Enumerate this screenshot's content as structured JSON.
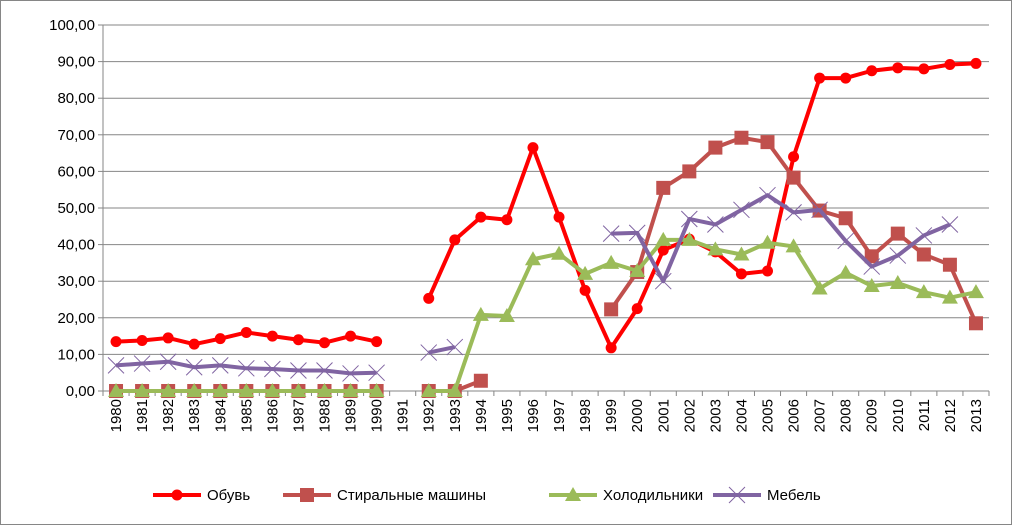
{
  "chart_data": {
    "type": "line",
    "title": "",
    "xlabel": "",
    "ylabel": "",
    "ylim": [
      0,
      100
    ],
    "yticks": [
      "0,00",
      "10,00",
      "20,00",
      "30,00",
      "40,00",
      "50,00",
      "60,00",
      "70,00",
      "80,00",
      "90,00",
      "100,00"
    ],
    "grid": true,
    "legend_position": "bottom",
    "categories": [
      "1980",
      "1981",
      "1982",
      "1983",
      "1984",
      "1985",
      "1986",
      "1987",
      "1988",
      "1989",
      "1990",
      "1991",
      "1992",
      "1993",
      "1994",
      "1995",
      "1996",
      "1997",
      "1998",
      "1999",
      "2000",
      "2001",
      "2002",
      "2003",
      "2004",
      "2005",
      "2006",
      "2007",
      "2008",
      "2009",
      "2010",
      "2011",
      "2012",
      "2013"
    ],
    "series": [
      {
        "name": "Обувь",
        "color": "#ff0000",
        "marker": "circle",
        "values": [
          13.5,
          13.8,
          14.5,
          12.8,
          14.3,
          16.0,
          15.0,
          14.0,
          13.2,
          15.0,
          13.5,
          null,
          25.3,
          41.3,
          47.5,
          46.8,
          66.5,
          47.5,
          27.5,
          11.8,
          22.5,
          38.5,
          41.5,
          38.0,
          32.0,
          32.8,
          64.0,
          85.5,
          85.5,
          87.5,
          88.3,
          88.0,
          89.2,
          89.5
        ]
      },
      {
        "name": "Стиральные машины",
        "color": "#c0504d",
        "marker": "square",
        "values": [
          0,
          0,
          0,
          0,
          0,
          0,
          0,
          0,
          0,
          0,
          0,
          null,
          0,
          0,
          2.8,
          null,
          null,
          null,
          null,
          22.3,
          32.5,
          55.5,
          60.0,
          66.5,
          69.2,
          68.0,
          58.3,
          49.3,
          47.2,
          36.8,
          43.0,
          37.3,
          34.5,
          18.5
        ]
      },
      {
        "name": "Холодильники",
        "color": "#9bbb59",
        "marker": "triangle",
        "values": [
          0,
          0,
          0,
          0,
          0,
          0,
          0,
          0,
          0,
          0,
          0,
          null,
          0,
          0,
          20.8,
          20.5,
          36.0,
          37.5,
          32.0,
          35.0,
          32.8,
          41.3,
          41.3,
          38.7,
          37.3,
          40.5,
          39.5,
          28.0,
          32.3,
          28.7,
          29.5,
          27.0,
          25.5,
          27.0
        ]
      },
      {
        "name": "Мебель",
        "color": "#8064a2",
        "marker": "x",
        "values": [
          7.0,
          7.5,
          8.0,
          6.5,
          7.0,
          6.2,
          6.0,
          5.6,
          5.6,
          4.8,
          5.0,
          null,
          10.5,
          12.0,
          null,
          null,
          null,
          null,
          null,
          43.0,
          43.2,
          30.0,
          47.0,
          45.5,
          49.5,
          53.5,
          48.8,
          49.5,
          41.0,
          34.0,
          37.0,
          42.5,
          45.5,
          null
        ]
      }
    ]
  }
}
